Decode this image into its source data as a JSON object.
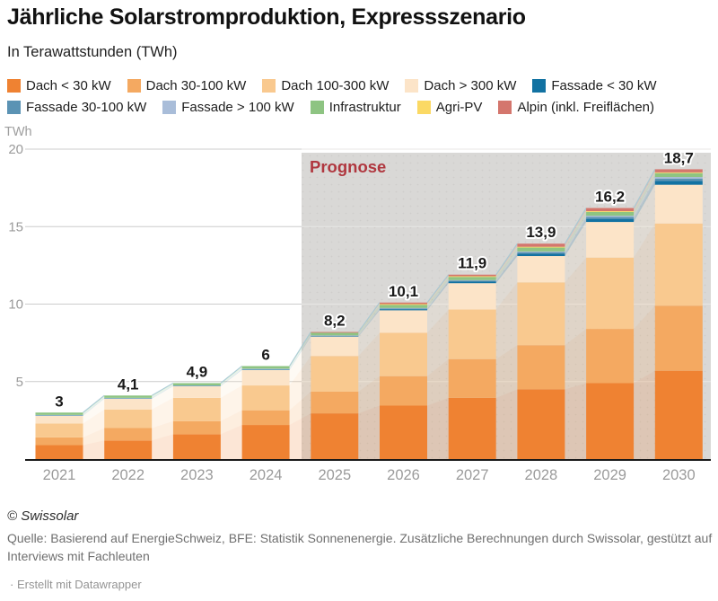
{
  "header": {
    "title": "Jährliche Solarstromproduktion, Expressszenario",
    "subtitle": "In Terawattstunden (TWh)"
  },
  "legend": {
    "rows": [
      [
        {
          "label": "Dach < 30 kW",
          "color": "#ef8232"
        },
        {
          "label": "Dach 30-100 kW",
          "color": "#f4a961"
        },
        {
          "label": "Dach 100-300 kW",
          "color": "#f9c98f"
        },
        {
          "label": "Dach > 300 kW",
          "color": "#fce4c8"
        },
        {
          "label": "Fassade < 30 kW",
          "color": "#1272a2"
        }
      ],
      [
        {
          "label": "Fassade 30-100 kW",
          "color": "#5b93b4"
        },
        {
          "label": "Fassade > 100 kW",
          "color": "#a9bdd9"
        },
        {
          "label": "Infrastruktur",
          "color": "#8ec482"
        },
        {
          "label": "Agri-PV",
          "color": "#fbd964"
        },
        {
          "label": "Alpin (inkl. Freiflächen)",
          "color": "#d4766d"
        }
      ]
    ]
  },
  "chart_data": {
    "type": "bar",
    "stacked": true,
    "title": "Jährliche Solarstromproduktion, Expressszenario",
    "subtitle": "In Terawattstunden (TWh)",
    "unit_label": "TWh",
    "xlabel": "",
    "ylabel": "TWh",
    "ylim": [
      0,
      20
    ],
    "yticks": [
      5,
      10,
      15,
      20
    ],
    "grid": true,
    "legend_position": "top",
    "categories": [
      "2021",
      "2022",
      "2023",
      "2024",
      "2025",
      "2026",
      "2027",
      "2028",
      "2029",
      "2030"
    ],
    "series": [
      {
        "name": "Dach < 30 kW",
        "color": "#ef8232",
        "values": [
          0.9,
          1.2,
          1.6,
          2.2,
          2.95,
          3.45,
          3.95,
          4.5,
          4.9,
          5.7
        ]
      },
      {
        "name": "Dach 30-100 kW",
        "color": "#f4a961",
        "values": [
          0.5,
          0.8,
          0.85,
          0.95,
          1.4,
          1.9,
          2.5,
          2.85,
          3.5,
          4.2
        ]
      },
      {
        "name": "Dach 100-300 kW",
        "color": "#f9c98f",
        "values": [
          0.9,
          1.2,
          1.5,
          1.6,
          2.3,
          2.8,
          3.2,
          4.05,
          4.6,
          5.3
        ]
      },
      {
        "name": "Dach > 300 kW",
        "color": "#fce4c8",
        "values": [
          0.5,
          0.7,
          0.75,
          1.0,
          1.25,
          1.45,
          1.7,
          1.7,
          2.3,
          2.5
        ]
      },
      {
        "name": "Fassade < 30 kW",
        "color": "#1272a2",
        "values": [
          0.02,
          0.02,
          0.02,
          0.03,
          0.03,
          0.07,
          0.1,
          0.15,
          0.2,
          0.25
        ]
      },
      {
        "name": "Fassade 30-100 kW",
        "color": "#5b93b4",
        "values": [
          0.02,
          0.02,
          0.02,
          0.03,
          0.03,
          0.05,
          0.07,
          0.1,
          0.12,
          0.15
        ]
      },
      {
        "name": "Fassade > 100 kW",
        "color": "#a9bdd9",
        "values": [
          0.01,
          0.01,
          0.01,
          0.02,
          0.02,
          0.03,
          0.03,
          0.05,
          0.08,
          0.1
        ]
      },
      {
        "name": "Infrastruktur",
        "color": "#8ec482",
        "values": [
          0.15,
          0.15,
          0.15,
          0.17,
          0.17,
          0.2,
          0.2,
          0.25,
          0.25,
          0.25
        ]
      },
      {
        "name": "Agri-PV",
        "color": "#fbd964",
        "values": [
          0.0,
          0.0,
          0.0,
          0.0,
          0.0,
          0.05,
          0.05,
          0.05,
          0.05,
          0.05
        ]
      },
      {
        "name": "Alpin (inkl. Freiflächen)",
        "color": "#d4766d",
        "values": [
          0.0,
          0.0,
          0.0,
          0.0,
          0.05,
          0.1,
          0.1,
          0.2,
          0.2,
          0.2
        ]
      }
    ],
    "totals": [
      3,
      4.1,
      4.9,
      6,
      8.2,
      10.1,
      11.9,
      13.9,
      16.2,
      18.7
    ],
    "total_labels": [
      "3",
      "4,1",
      "4,9",
      "6",
      "8,2",
      "10,1",
      "11,9",
      "13,9",
      "16,2",
      "18,7"
    ],
    "annotation": {
      "text": "Prognose",
      "color": "#b0373f",
      "from_category": "2025"
    },
    "prognose_bg": "#d9d8d6",
    "axis_text_color": "#9b9b9b",
    "gridline_color": "#cccccc"
  },
  "footer": {
    "copyright": "© Swissolar",
    "source": "Quelle: Basierend auf EnergieSchweiz, BFE: Statistik Sonnenenergie. Zusätzliche Berechnungen durch Swissolar, gestützt auf Interviews mit Fachleuten",
    "attribution": "· Erstellt mit Datawrapper"
  }
}
